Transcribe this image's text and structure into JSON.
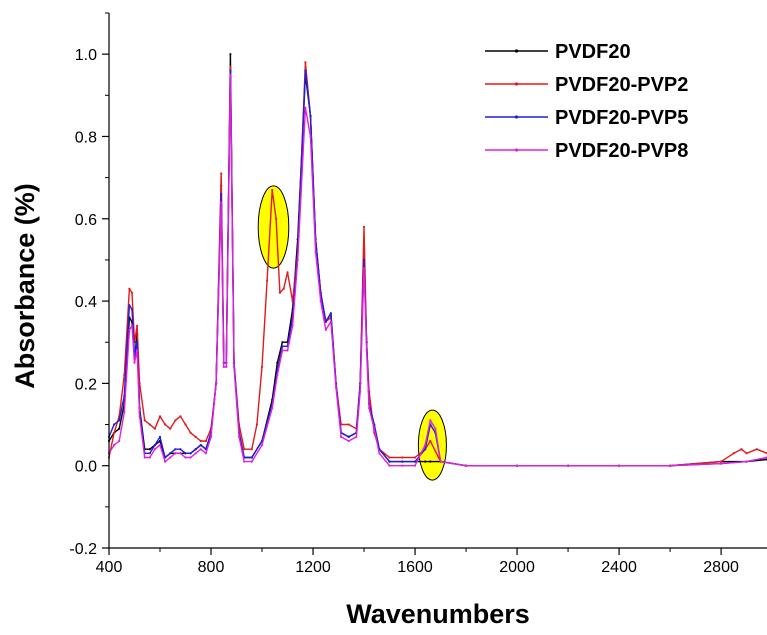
{
  "chart_data": {
    "type": "line",
    "xlabel": "Wavenumbers",
    "ylabel": "Absorbance (%)",
    "xlim": [
      400,
      2980
    ],
    "ylim": [
      -0.2,
      1.1
    ],
    "x_ticks": [
      400,
      800,
      1200,
      1600,
      2000,
      2400,
      2800
    ],
    "x_tick_labels": [
      "400",
      "800",
      "1200",
      "1600",
      "2000",
      "2400",
      "2800"
    ],
    "y_ticks": [
      -0.2,
      0.0,
      0.2,
      0.4,
      0.6,
      0.8,
      1.0
    ],
    "y_tick_labels": [
      "-0.2",
      "0.0",
      "0.2",
      "0.4",
      "0.6",
      "0.8",
      "1.0"
    ],
    "grid": false,
    "legend_position": "top-right",
    "series": [
      {
        "name": "PVDF20",
        "color": "#000000",
        "points": [
          [
            400,
            0.06
          ],
          [
            420,
            0.08
          ],
          [
            440,
            0.09
          ],
          [
            460,
            0.15
          ],
          [
            480,
            0.36
          ],
          [
            490,
            0.35
          ],
          [
            500,
            0.26
          ],
          [
            510,
            0.32
          ],
          [
            520,
            0.14
          ],
          [
            540,
            0.04
          ],
          [
            560,
            0.04
          ],
          [
            580,
            0.05
          ],
          [
            600,
            0.06
          ],
          [
            620,
            0.02
          ],
          [
            640,
            0.03
          ],
          [
            660,
            0.03
          ],
          [
            680,
            0.03
          ],
          [
            700,
            0.03
          ],
          [
            720,
            0.03
          ],
          [
            740,
            0.04
          ],
          [
            760,
            0.05
          ],
          [
            780,
            0.04
          ],
          [
            800,
            0.08
          ],
          [
            820,
            0.2
          ],
          [
            840,
            0.68
          ],
          [
            850,
            0.25
          ],
          [
            860,
            0.25
          ],
          [
            876,
            1.0
          ],
          [
            890,
            0.25
          ],
          [
            910,
            0.08
          ],
          [
            930,
            0.02
          ],
          [
            960,
            0.02
          ],
          [
            1000,
            0.06
          ],
          [
            1040,
            0.16
          ],
          [
            1060,
            0.25
          ],
          [
            1080,
            0.3
          ],
          [
            1100,
            0.3
          ],
          [
            1120,
            0.38
          ],
          [
            1140,
            0.55
          ],
          [
            1170,
            0.95
          ],
          [
            1190,
            0.85
          ],
          [
            1210,
            0.55
          ],
          [
            1230,
            0.42
          ],
          [
            1250,
            0.35
          ],
          [
            1270,
            0.37
          ],
          [
            1290,
            0.2
          ],
          [
            1310,
            0.08
          ],
          [
            1340,
            0.07
          ],
          [
            1370,
            0.08
          ],
          [
            1385,
            0.2
          ],
          [
            1400,
            0.52
          ],
          [
            1410,
            0.3
          ],
          [
            1420,
            0.15
          ],
          [
            1440,
            0.1
          ],
          [
            1460,
            0.04
          ],
          [
            1500,
            0.01
          ],
          [
            1550,
            0.01
          ],
          [
            1600,
            0.01
          ],
          [
            1640,
            0.01
          ],
          [
            1660,
            0.01
          ],
          [
            1700,
            0.01
          ],
          [
            1800,
            0.0
          ],
          [
            2000,
            0.0
          ],
          [
            2200,
            0.0
          ],
          [
            2400,
            0.0
          ],
          [
            2600,
            0.0
          ],
          [
            2800,
            0.01
          ],
          [
            2900,
            0.01
          ],
          [
            2980,
            0.015
          ]
        ]
      },
      {
        "name": "PVDF20-PVP2",
        "color": "#e31a1c",
        "points": [
          [
            400,
            0.02
          ],
          [
            420,
            0.08
          ],
          [
            440,
            0.12
          ],
          [
            460,
            0.22
          ],
          [
            480,
            0.43
          ],
          [
            490,
            0.42
          ],
          [
            500,
            0.3
          ],
          [
            510,
            0.34
          ],
          [
            520,
            0.2
          ],
          [
            540,
            0.11
          ],
          [
            560,
            0.1
          ],
          [
            580,
            0.09
          ],
          [
            600,
            0.12
          ],
          [
            620,
            0.1
          ],
          [
            640,
            0.09
          ],
          [
            660,
            0.11
          ],
          [
            680,
            0.12
          ],
          [
            700,
            0.1
          ],
          [
            720,
            0.08
          ],
          [
            740,
            0.07
          ],
          [
            760,
            0.06
          ],
          [
            780,
            0.06
          ],
          [
            800,
            0.09
          ],
          [
            820,
            0.2
          ],
          [
            840,
            0.71
          ],
          [
            850,
            0.25
          ],
          [
            860,
            0.25
          ],
          [
            876,
            0.97
          ],
          [
            890,
            0.25
          ],
          [
            910,
            0.1
          ],
          [
            930,
            0.04
          ],
          [
            960,
            0.04
          ],
          [
            980,
            0.1
          ],
          [
            1000,
            0.24
          ],
          [
            1020,
            0.45
          ],
          [
            1040,
            0.67
          ],
          [
            1055,
            0.6
          ],
          [
            1070,
            0.42
          ],
          [
            1085,
            0.43
          ],
          [
            1100,
            0.47
          ],
          [
            1120,
            0.4
          ],
          [
            1140,
            0.52
          ],
          [
            1170,
            0.98
          ],
          [
            1190,
            0.85
          ],
          [
            1210,
            0.55
          ],
          [
            1230,
            0.42
          ],
          [
            1250,
            0.35
          ],
          [
            1270,
            0.36
          ],
          [
            1290,
            0.2
          ],
          [
            1310,
            0.1
          ],
          [
            1340,
            0.1
          ],
          [
            1370,
            0.09
          ],
          [
            1385,
            0.2
          ],
          [
            1400,
            0.58
          ],
          [
            1410,
            0.3
          ],
          [
            1420,
            0.18
          ],
          [
            1440,
            0.08
          ],
          [
            1460,
            0.04
          ],
          [
            1500,
            0.02
          ],
          [
            1550,
            0.02
          ],
          [
            1600,
            0.02
          ],
          [
            1640,
            0.04
          ],
          [
            1660,
            0.06
          ],
          [
            1700,
            0.01
          ],
          [
            1800,
            0.0
          ],
          [
            2000,
            0.0
          ],
          [
            2200,
            0.0
          ],
          [
            2400,
            0.0
          ],
          [
            2600,
            0.0
          ],
          [
            2800,
            0.01
          ],
          [
            2850,
            0.03
          ],
          [
            2880,
            0.04
          ],
          [
            2900,
            0.03
          ],
          [
            2940,
            0.04
          ],
          [
            2980,
            0.03
          ]
        ]
      },
      {
        "name": "PVDF20-PVP5",
        "color": "#1f1fd8",
        "points": [
          [
            400,
            0.07
          ],
          [
            420,
            0.1
          ],
          [
            440,
            0.11
          ],
          [
            460,
            0.17
          ],
          [
            480,
            0.39
          ],
          [
            490,
            0.38
          ],
          [
            500,
            0.27
          ],
          [
            510,
            0.3
          ],
          [
            520,
            0.13
          ],
          [
            540,
            0.03
          ],
          [
            560,
            0.03
          ],
          [
            580,
            0.05
          ],
          [
            600,
            0.07
          ],
          [
            620,
            0.02
          ],
          [
            640,
            0.03
          ],
          [
            660,
            0.04
          ],
          [
            680,
            0.04
          ],
          [
            700,
            0.03
          ],
          [
            720,
            0.03
          ],
          [
            740,
            0.04
          ],
          [
            760,
            0.05
          ],
          [
            780,
            0.04
          ],
          [
            800,
            0.08
          ],
          [
            820,
            0.2
          ],
          [
            840,
            0.66
          ],
          [
            850,
            0.25
          ],
          [
            860,
            0.25
          ],
          [
            876,
            0.96
          ],
          [
            890,
            0.25
          ],
          [
            910,
            0.08
          ],
          [
            930,
            0.02
          ],
          [
            960,
            0.02
          ],
          [
            1000,
            0.06
          ],
          [
            1040,
            0.15
          ],
          [
            1060,
            0.23
          ],
          [
            1080,
            0.29
          ],
          [
            1100,
            0.29
          ],
          [
            1120,
            0.36
          ],
          [
            1140,
            0.52
          ],
          [
            1170,
            0.96
          ],
          [
            1190,
            0.85
          ],
          [
            1210,
            0.55
          ],
          [
            1230,
            0.42
          ],
          [
            1250,
            0.35
          ],
          [
            1270,
            0.37
          ],
          [
            1290,
            0.2
          ],
          [
            1310,
            0.08
          ],
          [
            1340,
            0.07
          ],
          [
            1370,
            0.08
          ],
          [
            1385,
            0.2
          ],
          [
            1400,
            0.5
          ],
          [
            1410,
            0.3
          ],
          [
            1420,
            0.15
          ],
          [
            1440,
            0.1
          ],
          [
            1460,
            0.04
          ],
          [
            1500,
            0.01
          ],
          [
            1550,
            0.01
          ],
          [
            1600,
            0.01
          ],
          [
            1640,
            0.04
          ],
          [
            1660,
            0.1
          ],
          [
            1680,
            0.08
          ],
          [
            1700,
            0.01
          ],
          [
            1800,
            0.0
          ],
          [
            2000,
            0.0
          ],
          [
            2200,
            0.0
          ],
          [
            2400,
            0.0
          ],
          [
            2600,
            0.0
          ],
          [
            2800,
            0.005
          ],
          [
            2900,
            0.01
          ],
          [
            2980,
            0.02
          ]
        ]
      },
      {
        "name": "PVDF20-PVP8",
        "color": "#e020e0",
        "points": [
          [
            400,
            0.03
          ],
          [
            420,
            0.05
          ],
          [
            440,
            0.06
          ],
          [
            460,
            0.13
          ],
          [
            480,
            0.33
          ],
          [
            490,
            0.34
          ],
          [
            500,
            0.25
          ],
          [
            510,
            0.28
          ],
          [
            520,
            0.12
          ],
          [
            540,
            0.02
          ],
          [
            560,
            0.02
          ],
          [
            580,
            0.04
          ],
          [
            600,
            0.05
          ],
          [
            620,
            0.01
          ],
          [
            640,
            0.02
          ],
          [
            660,
            0.03
          ],
          [
            680,
            0.03
          ],
          [
            700,
            0.02
          ],
          [
            720,
            0.02
          ],
          [
            740,
            0.03
          ],
          [
            760,
            0.04
          ],
          [
            780,
            0.03
          ],
          [
            800,
            0.07
          ],
          [
            820,
            0.2
          ],
          [
            840,
            0.64
          ],
          [
            850,
            0.24
          ],
          [
            860,
            0.24
          ],
          [
            876,
            0.95
          ],
          [
            890,
            0.24
          ],
          [
            910,
            0.07
          ],
          [
            930,
            0.01
          ],
          [
            960,
            0.01
          ],
          [
            1000,
            0.05
          ],
          [
            1040,
            0.14
          ],
          [
            1060,
            0.22
          ],
          [
            1080,
            0.28
          ],
          [
            1100,
            0.28
          ],
          [
            1120,
            0.34
          ],
          [
            1140,
            0.5
          ],
          [
            1170,
            0.87
          ],
          [
            1190,
            0.8
          ],
          [
            1210,
            0.52
          ],
          [
            1230,
            0.4
          ],
          [
            1250,
            0.33
          ],
          [
            1270,
            0.35
          ],
          [
            1290,
            0.19
          ],
          [
            1310,
            0.07
          ],
          [
            1340,
            0.06
          ],
          [
            1370,
            0.07
          ],
          [
            1385,
            0.18
          ],
          [
            1400,
            0.48
          ],
          [
            1410,
            0.28
          ],
          [
            1420,
            0.14
          ],
          [
            1440,
            0.09
          ],
          [
            1460,
            0.03
          ],
          [
            1500,
            0.0
          ],
          [
            1550,
            0.0
          ],
          [
            1600,
            0.0
          ],
          [
            1640,
            0.05
          ],
          [
            1660,
            0.11
          ],
          [
            1680,
            0.09
          ],
          [
            1700,
            0.01
          ],
          [
            1800,
            0.0
          ],
          [
            2000,
            0.0
          ],
          [
            2200,
            0.0
          ],
          [
            2400,
            0.0
          ],
          [
            2600,
            0.0
          ],
          [
            2800,
            0.005
          ],
          [
            2900,
            0.01
          ],
          [
            2980,
            0.02
          ]
        ]
      }
    ],
    "highlights": [
      {
        "x_center": 1045,
        "y_center": 0.58,
        "x_radius": 60,
        "y_radius": 0.1,
        "fill": "#ffff00"
      },
      {
        "x_center": 1668,
        "y_center": 0.05,
        "x_radius": 55,
        "y_radius": 0.085,
        "fill": "#ffff00"
      }
    ]
  }
}
